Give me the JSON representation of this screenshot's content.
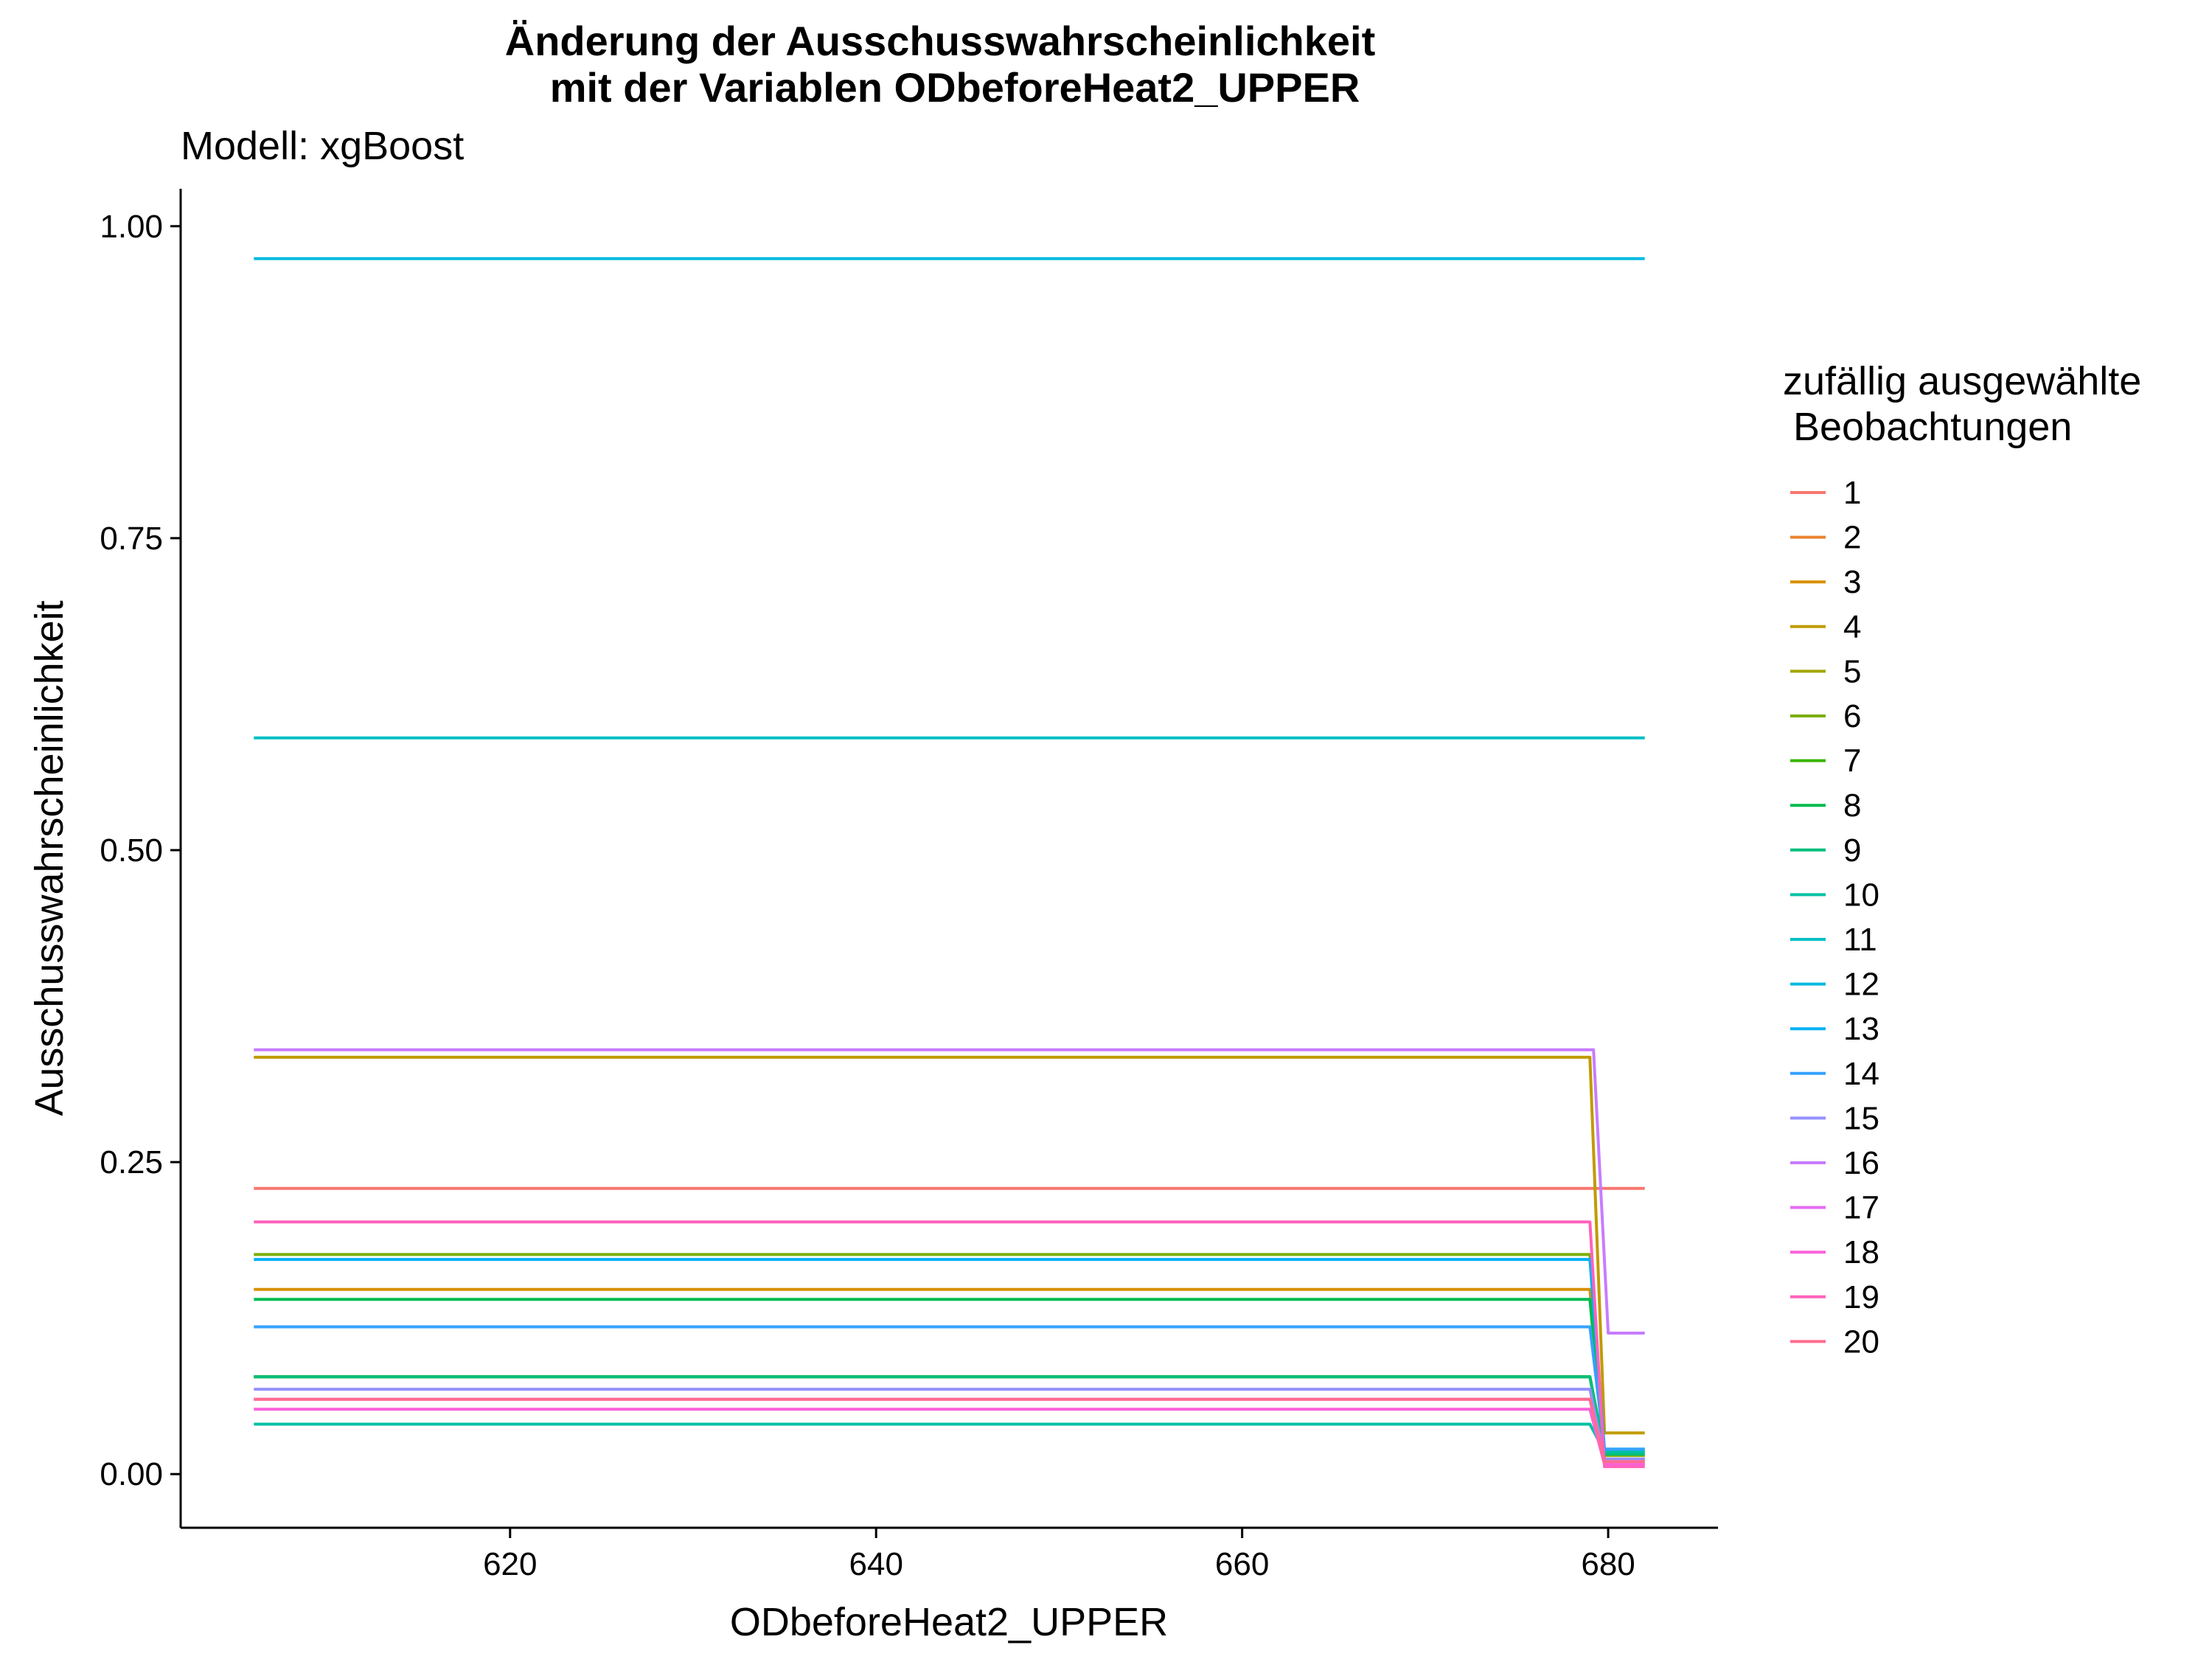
{
  "chart_data": {
    "type": "line",
    "title_line1": "Änderung der Ausschusswahrscheinlichkeit",
    "title_line2": "mit der Variablen ODbeforeHeat2_UPPER",
    "subtitle": "Modell: xgBoost",
    "xlabel": "ODbeforeHeat2_UPPER",
    "ylabel": "Ausschusswahrscheinlichkeit",
    "xlim": [
      602,
      686
    ],
    "ylim": [
      -0.043,
      1.03
    ],
    "x_ticks": [
      {
        "value": 620,
        "label": "620"
      },
      {
        "value": 640,
        "label": "640"
      },
      {
        "value": 660,
        "label": "660"
      },
      {
        "value": 680,
        "label": "680"
      }
    ],
    "y_ticks": [
      {
        "value": 0.0,
        "label": "0.00"
      },
      {
        "value": 0.25,
        "label": "0.25"
      },
      {
        "value": 0.5,
        "label": "0.50"
      },
      {
        "value": 0.75,
        "label": "0.75"
      },
      {
        "value": 1.0,
        "label": "1.00"
      }
    ],
    "grid": false,
    "legend": {
      "title_line1": "zufällig ausgewählte",
      "title_line2": "Beobachtungen",
      "position": "right"
    },
    "series": [
      {
        "name": "1",
        "color": "#F8766D",
        "points": [
          [
            606,
            0.229
          ],
          [
            682,
            0.229
          ]
        ]
      },
      {
        "name": "2",
        "color": "#EA8331",
        "points": [
          [
            606,
            0.078
          ],
          [
            679,
            0.078
          ],
          [
            679.8,
            0.015
          ],
          [
            682,
            0.015
          ]
        ]
      },
      {
        "name": "3",
        "color": "#D89000",
        "points": [
          [
            606,
            0.148
          ],
          [
            679,
            0.148
          ],
          [
            679.8,
            0.01
          ],
          [
            682,
            0.01
          ]
        ]
      },
      {
        "name": "4",
        "color": "#C09B00",
        "points": [
          [
            606,
            0.334
          ],
          [
            679,
            0.334
          ],
          [
            679.8,
            0.033
          ],
          [
            682,
            0.033
          ]
        ]
      },
      {
        "name": "5",
        "color": "#A3A500",
        "points": [
          [
            606,
            0.078
          ],
          [
            679,
            0.078
          ],
          [
            679.8,
            0.012
          ],
          [
            682,
            0.012
          ]
        ]
      },
      {
        "name": "6",
        "color": "#7CAE00",
        "points": [
          [
            606,
            0.176
          ],
          [
            679,
            0.176
          ],
          [
            679.8,
            0.015
          ],
          [
            682,
            0.015
          ]
        ]
      },
      {
        "name": "7",
        "color": "#39B600",
        "points": [
          [
            606,
            0.078
          ],
          [
            679,
            0.078
          ],
          [
            679.8,
            0.018
          ],
          [
            682,
            0.018
          ]
        ]
      },
      {
        "name": "8",
        "color": "#00BB4E",
        "points": [
          [
            606,
            0.14
          ],
          [
            679,
            0.14
          ],
          [
            679.8,
            0.012
          ],
          [
            682,
            0.012
          ]
        ]
      },
      {
        "name": "9",
        "color": "#00BF7D",
        "points": [
          [
            606,
            0.078
          ],
          [
            679,
            0.078
          ],
          [
            679.8,
            0.016
          ],
          [
            682,
            0.016
          ]
        ]
      },
      {
        "name": "10",
        "color": "#00C1A3",
        "points": [
          [
            606,
            0.04
          ],
          [
            679,
            0.04
          ],
          [
            679.8,
            0.018
          ],
          [
            682,
            0.018
          ]
        ]
      },
      {
        "name": "11",
        "color": "#00BFC4",
        "points": [
          [
            606,
            0.59
          ],
          [
            682,
            0.59
          ]
        ]
      },
      {
        "name": "12",
        "color": "#00BAE0",
        "points": [
          [
            606,
            0.974
          ],
          [
            682,
            0.974
          ]
        ]
      },
      {
        "name": "13",
        "color": "#00B0F6",
        "points": [
          [
            606,
            0.172
          ],
          [
            679,
            0.172
          ],
          [
            679.8,
            0.02
          ],
          [
            682,
            0.02
          ]
        ]
      },
      {
        "name": "14",
        "color": "#35A2FF",
        "points": [
          [
            606,
            0.118
          ],
          [
            679,
            0.118
          ],
          [
            679.8,
            0.02
          ],
          [
            682,
            0.02
          ]
        ]
      },
      {
        "name": "15",
        "color": "#9590FF",
        "points": [
          [
            606,
            0.068
          ],
          [
            679,
            0.068
          ],
          [
            679.8,
            0.012
          ],
          [
            682,
            0.012
          ]
        ]
      },
      {
        "name": "16",
        "color": "#C77CFF",
        "points": [
          [
            606,
            0.34
          ],
          [
            679.2,
            0.34
          ],
          [
            680,
            0.113
          ],
          [
            682,
            0.113
          ]
        ]
      },
      {
        "name": "17",
        "color": "#E76BF3",
        "points": [
          [
            606,
            0.06
          ],
          [
            679,
            0.06
          ],
          [
            679.8,
            0.008
          ],
          [
            682,
            0.008
          ]
        ]
      },
      {
        "name": "18",
        "color": "#FA62DB",
        "points": [
          [
            606,
            0.052
          ],
          [
            679,
            0.052
          ],
          [
            679.8,
            0.008
          ],
          [
            682,
            0.008
          ]
        ]
      },
      {
        "name": "19",
        "color": "#FF62BC",
        "points": [
          [
            606,
            0.202
          ],
          [
            679,
            0.202
          ],
          [
            679.8,
            0.006
          ],
          [
            682,
            0.006
          ]
        ]
      },
      {
        "name": "20",
        "color": "#FF6C91",
        "points": [
          [
            606,
            0.06
          ],
          [
            679,
            0.06
          ],
          [
            679.8,
            0.01
          ],
          [
            682,
            0.01
          ]
        ]
      }
    ]
  }
}
